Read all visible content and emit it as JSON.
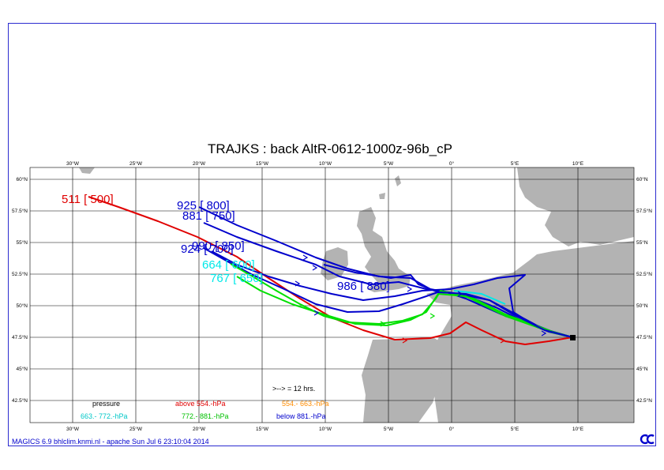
{
  "title": "TRAJKS : back AltR-0612-1000z-96b_cP",
  "lon_ticks": [
    "30°W",
    "25°W",
    "20°W",
    "15°W",
    "10°W",
    "5°W",
    "0°",
    "5°E",
    "10°E"
  ],
  "lat_ticks": [
    "60°N",
    "57.5°N",
    "55°N",
    "52.5°N",
    "50°N",
    "47.5°N",
    "45°N",
    "42.5°N"
  ],
  "trajectory_labels": [
    {
      "text": "511 [ 500]",
      "color": "#e00000"
    },
    {
      "text": "925 [ 800]",
      "color": "#0000cc"
    },
    {
      "text": "881 [ 750]",
      "color": "#0000cc"
    },
    {
      "text": "990 [ 850]",
      "color": "#0000cc"
    },
    {
      "text": "924 [ 700]",
      "color": "#0000cc"
    },
    {
      "text": "664 [ 600]",
      "color": "#00e8e8"
    },
    {
      "text": "767 [ 650]",
      "color": "#00e8e8"
    },
    {
      "text": "986 [ 880]",
      "color": "#0000cc"
    }
  ],
  "legend": {
    "heading": "pressure",
    "interval_note": ">--> = 12 hrs.",
    "items": [
      {
        "text": "above  554.-hPa",
        "color": "#e00000"
      },
      {
        "text": "554.-   663.-hPa",
        "color": "#ff8c00"
      },
      {
        "text": "663.-   772.-hPa",
        "color": "#00e8e8"
      },
      {
        "text": "772.-   881.-hPa",
        "color": "#00e000"
      },
      {
        "text": "below  881.-hPa",
        "color": "#0000cc"
      }
    ]
  },
  "footer": "MAGICS 6.9 bhlclim.knmi.nl - apache Sun Jul  6 23:10:04 2014",
  "colors": {
    "land": "#b3b3b3",
    "grid": "#000000",
    "frame": "#2c2cd0"
  }
}
